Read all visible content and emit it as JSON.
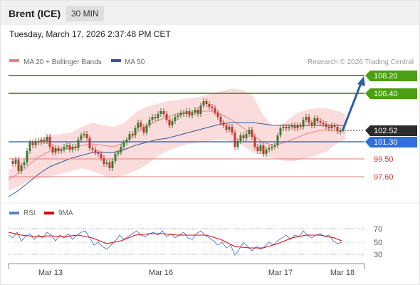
{
  "header": {
    "instrument": "Brent (ICE)",
    "timeframe": "30 MIN"
  },
  "timestamp": "Tuesday, March 17, 2026 2:37:48 PM CET",
  "legend": {
    "bollinger_label": "MA 20 + Bollinger Bands",
    "ma50_label": "MA 50",
    "bollinger_color": "#f08080",
    "ma50_color": "#2e5a9c"
  },
  "copyright": "Research © 2026 Trading Central",
  "levels": {
    "r2": "108.20",
    "r1": "106.40",
    "last": "102.52",
    "pivot": "101.30",
    "s1": "99.50",
    "s2": "97.60"
  },
  "colors": {
    "resistance": "#5aa51c",
    "pivot": "#3a6fd8",
    "support": "#e07a7a",
    "arrow": "#2a5fa8",
    "bull_candle": "#3e7a34",
    "bear_candle": "#c0392b"
  },
  "rsi_legend": {
    "rsi_label": "RSI",
    "ma_label": "9MA",
    "rsi_color": "#5b7fd6",
    "ma_color": "#e00000"
  },
  "rsi_axis": [
    "70",
    "50",
    "30"
  ],
  "x_axis": [
    "Mar 13",
    "Mar 16",
    "Mar 17",
    "Mar 18"
  ]
}
